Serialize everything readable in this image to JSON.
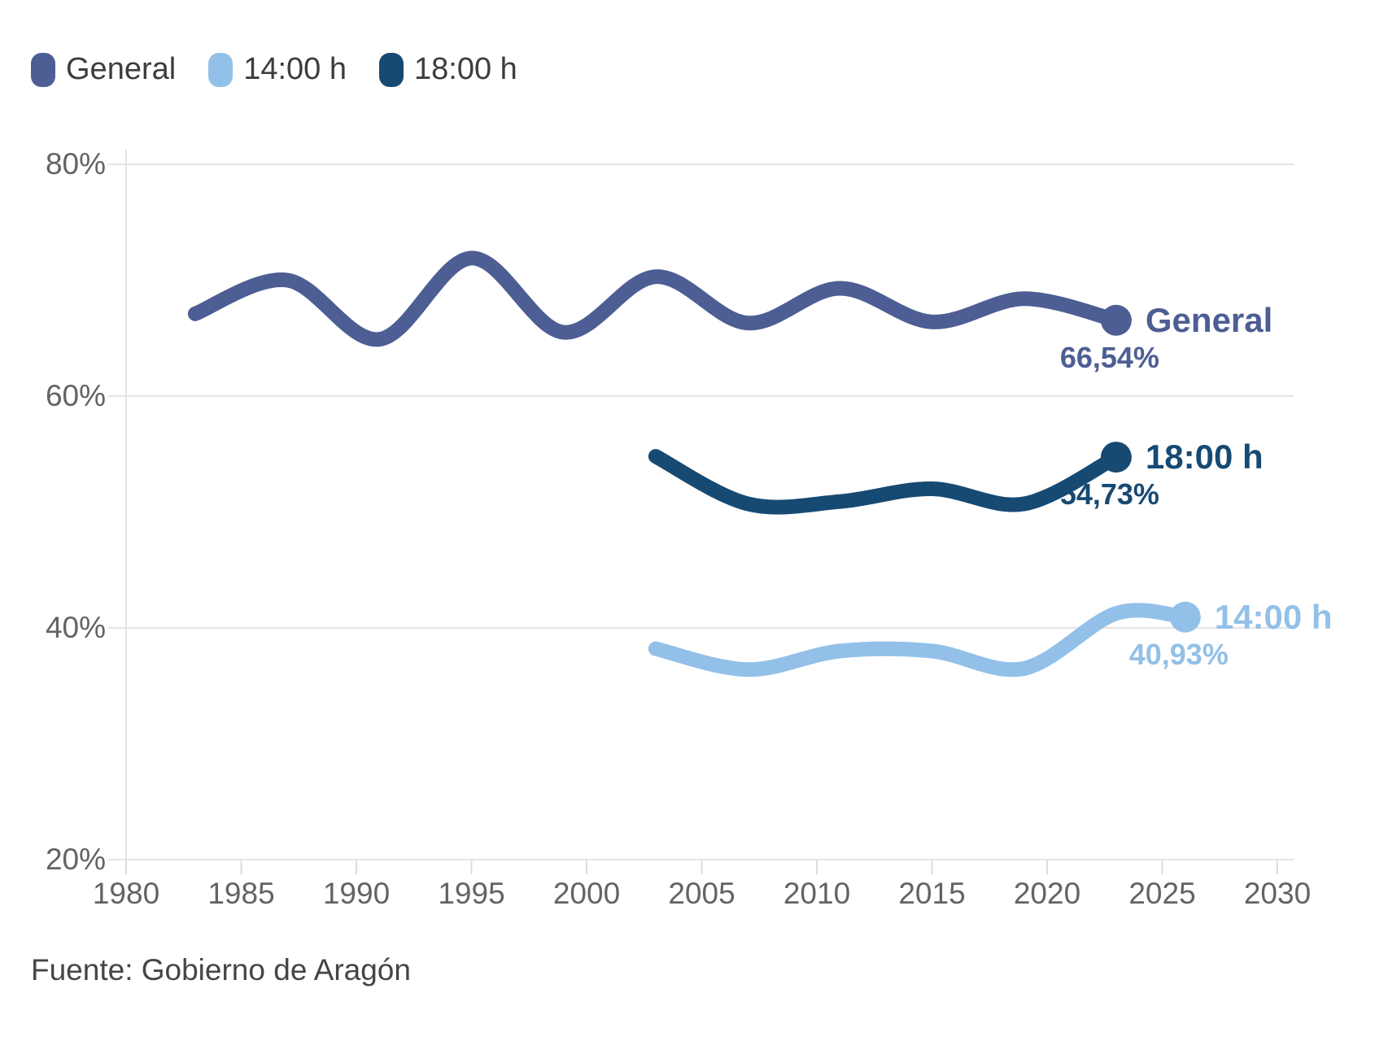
{
  "legend": {
    "items": [
      {
        "label": "General",
        "color": "#4d5e94"
      },
      {
        "label": "14:00 h",
        "color": "#92c0e8"
      },
      {
        "label": "18:00 h",
        "color": "#174a73"
      }
    ]
  },
  "source": "Fuente: Gobierno de Aragón",
  "chart_data": {
    "type": "line",
    "title": "",
    "xlabel": "",
    "ylabel": "",
    "x_ticks": [
      1980,
      1985,
      1990,
      1995,
      2000,
      2005,
      2010,
      2015,
      2020,
      2025,
      2030
    ],
    "y_ticks": [
      20,
      40,
      60,
      80
    ],
    "y_tick_suffix": "%",
    "xlim": [
      1980,
      2030
    ],
    "ylim": [
      20,
      80
    ],
    "grid": "horizontal-only",
    "legend_position": "top-left",
    "colors": {
      "gridline": "#e4e4e4",
      "tick": "#dcdcdc",
      "axis_text": "#636363"
    },
    "series": [
      {
        "name": "General",
        "color": "#4d5e94",
        "end_label": "General",
        "end_value_label": "66,54%",
        "end_value": 66.54,
        "x": [
          1983,
          1987,
          1991,
          1995,
          1999,
          2003,
          2007,
          2011,
          2015,
          2019,
          2023
        ],
        "y": [
          67.1,
          70.0,
          64.9,
          71.9,
          65.5,
          70.3,
          66.3,
          69.3,
          66.4,
          68.4,
          66.54
        ]
      },
      {
        "name": "14:00 h",
        "color": "#92c0e8",
        "end_label": "14:00 h",
        "end_value_label": "40,93%",
        "end_value": 40.93,
        "x": [
          2003,
          2007,
          2011,
          2015,
          2019,
          2023,
          2026
        ],
        "y": [
          38.2,
          36.4,
          38.0,
          38.0,
          36.5,
          41.25,
          40.93
        ]
      },
      {
        "name": "18:00 h",
        "color": "#174a73",
        "end_label": "18:00 h",
        "end_value_label": "54,73%",
        "end_value": 54.73,
        "x": [
          2003,
          2007,
          2011,
          2015,
          2019,
          2023
        ],
        "y": [
          54.8,
          50.7,
          50.9,
          52.0,
          50.7,
          54.73
        ]
      }
    ]
  }
}
